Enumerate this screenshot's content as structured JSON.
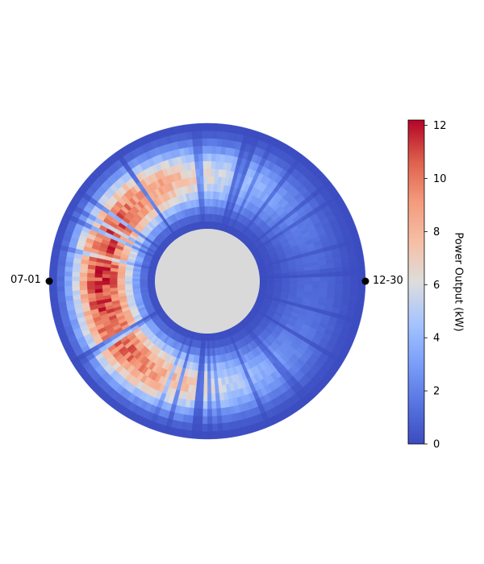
{
  "chart_data": {
    "type": "heatmap",
    "layout": "polar",
    "angular_labels": {
      "left": "07-01",
      "right": "12-30"
    },
    "colorbar": {
      "label": "Power Output (kW)",
      "min": 0,
      "max": 12.2,
      "ticks": [
        "0",
        "2",
        "4",
        "6",
        "8",
        "10",
        "12"
      ],
      "colormap": "coolwarm"
    },
    "description_values": {
      "peak_band_kw": 10,
      "inner_edge_kw": 1,
      "outer_edge_kw": 1
    }
  },
  "colors": {
    "hole": "#d9d9d9",
    "low": "#3b4cc0",
    "mid": "#dddddd",
    "high": "#b40426"
  }
}
